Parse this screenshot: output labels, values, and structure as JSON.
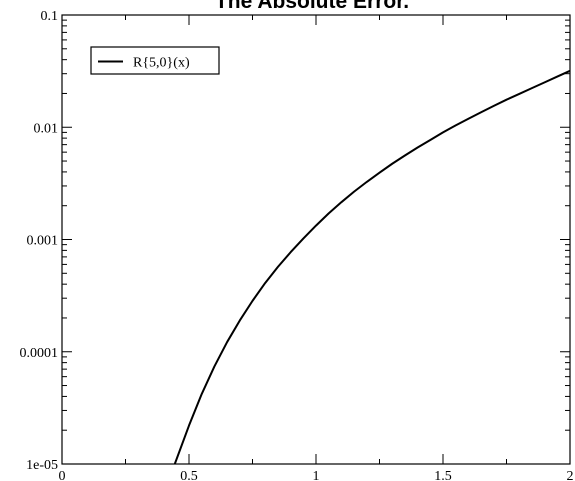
{
  "chart_data": {
    "type": "line",
    "title": "The Absolute Error.",
    "xlabel": "",
    "ylabel": "",
    "xlim": [
      0,
      2
    ],
    "ylim": [
      1e-05,
      0.1
    ],
    "yscale": "log",
    "grid": false,
    "legend_position": "top-left",
    "x_ticks": [
      {
        "value": 0,
        "label": "0"
      },
      {
        "value": 0.5,
        "label": "0.5"
      },
      {
        "value": 1,
        "label": "1"
      },
      {
        "value": 1.5,
        "label": "1.5"
      },
      {
        "value": 2,
        "label": "2"
      }
    ],
    "x_minor_ticks": [
      0.25,
      0.75,
      1.25,
      1.75
    ],
    "y_ticks": [
      {
        "value": 1e-05,
        "label": "1e-05"
      },
      {
        "value": 0.0001,
        "label": "0.0001"
      },
      {
        "value": 0.001,
        "label": "0.001"
      },
      {
        "value": 0.01,
        "label": "0.01"
      },
      {
        "value": 0.1,
        "label": "0.1"
      }
    ],
    "series": [
      {
        "name": "R{5,0}(x)",
        "color": "#000000",
        "x": [
          0.444,
          0.5,
          0.55,
          0.6,
          0.65,
          0.7,
          0.75,
          0.8,
          0.85,
          0.9,
          0.95,
          1.0,
          1.05,
          1.1,
          1.15,
          1.2,
          1.25,
          1.3,
          1.35,
          1.4,
          1.45,
          1.5,
          1.55,
          1.6,
          1.65,
          1.7,
          1.75,
          1.8,
          1.85,
          1.9,
          1.95,
          2.0
        ],
        "y": [
          1e-05,
          2.2e-05,
          4.2e-05,
          7.4e-05,
          0.000122,
          0.00019,
          0.000284,
          0.00041,
          0.00057,
          0.00077,
          0.00102,
          0.00133,
          0.00171,
          0.00215,
          0.00267,
          0.00326,
          0.00394,
          0.00473,
          0.0056,
          0.0066,
          0.0077,
          0.009,
          0.0104,
          0.0119,
          0.0136,
          0.0155,
          0.0176,
          0.0198,
          0.0223,
          0.0251,
          0.0283,
          0.0318
        ]
      }
    ]
  }
}
